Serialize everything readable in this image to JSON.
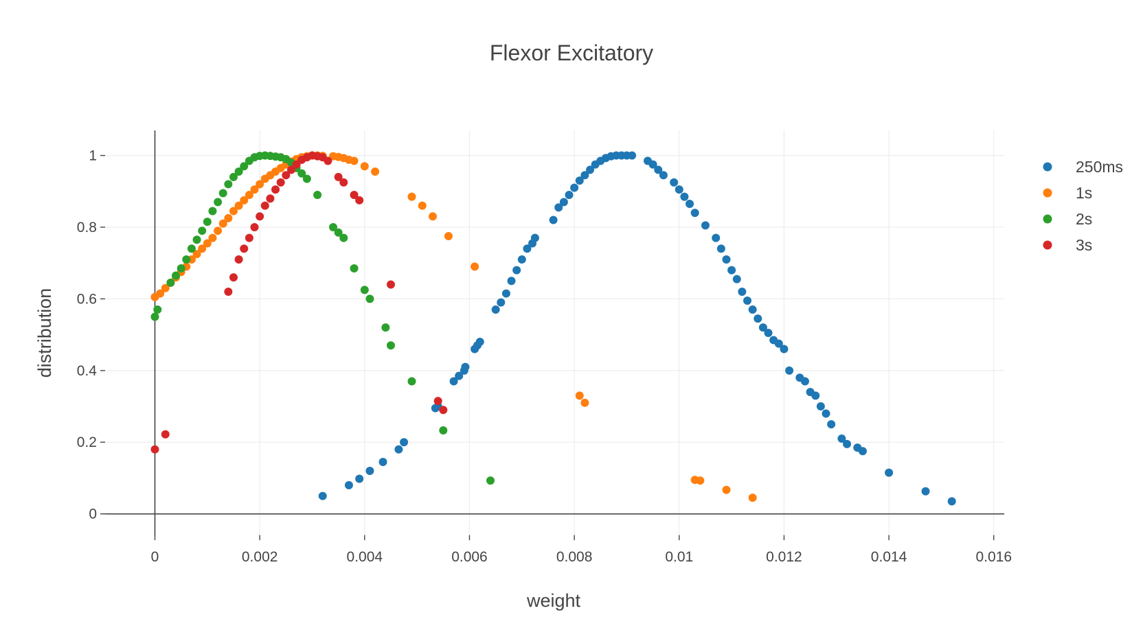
{
  "chart_data": {
    "type": "scatter",
    "title": "Flexor  Excitatory",
    "xlabel": "weight",
    "ylabel": "distribution",
    "xlim": [
      -0.00095,
      0.0162
    ],
    "ylim": [
      -0.06,
      1.07
    ],
    "xticks": [
      {
        "value": 0,
        "label": "0"
      },
      {
        "value": 0.002,
        "label": "0.002"
      },
      {
        "value": 0.004,
        "label": "0.004"
      },
      {
        "value": 0.006,
        "label": "0.006"
      },
      {
        "value": 0.008,
        "label": "0.008"
      },
      {
        "value": 0.01,
        "label": "0.01"
      },
      {
        "value": 0.012,
        "label": "0.012"
      },
      {
        "value": 0.014,
        "label": "0.014"
      },
      {
        "value": 0.016,
        "label": "0.016"
      }
    ],
    "yticks": [
      {
        "value": 0,
        "label": "0"
      },
      {
        "value": 0.2,
        "label": "0.2"
      },
      {
        "value": 0.4,
        "label": "0.4"
      },
      {
        "value": 0.6,
        "label": "0.6"
      },
      {
        "value": 0.8,
        "label": "0.8"
      },
      {
        "value": 1,
        "label": "1"
      }
    ],
    "grid": true,
    "legend_position": "top-right",
    "series": [
      {
        "name": "250ms",
        "color": "#1f77b4",
        "x": [
          0.0032,
          0.0037,
          0.0039,
          0.0041,
          0.00435,
          0.00465,
          0.00475,
          0.00535,
          0.0054,
          0.0057,
          0.0058,
          0.0059,
          0.00592,
          0.0061,
          0.00615,
          0.0062,
          0.0065,
          0.0066,
          0.0067,
          0.0068,
          0.0069,
          0.007,
          0.0071,
          0.0072,
          0.00725,
          0.0076,
          0.0077,
          0.0078,
          0.0079,
          0.008,
          0.0081,
          0.0082,
          0.0083,
          0.0084,
          0.0085,
          0.0086,
          0.0087,
          0.0088,
          0.0089,
          0.009,
          0.0091,
          0.0094,
          0.0095,
          0.0096,
          0.0097,
          0.0099,
          0.01,
          0.0101,
          0.0102,
          0.0103,
          0.0105,
          0.0107,
          0.0108,
          0.0109,
          0.011,
          0.0111,
          0.0112,
          0.0113,
          0.0114,
          0.0115,
          0.0116,
          0.0117,
          0.0118,
          0.0119,
          0.012,
          0.0121,
          0.0123,
          0.0124,
          0.0125,
          0.0126,
          0.0127,
          0.0128,
          0.0129,
          0.0131,
          0.0132,
          0.0134,
          0.0135,
          0.014,
          0.0147,
          0.0152
        ],
        "y": [
          0.05,
          0.08,
          0.098,
          0.12,
          0.145,
          0.18,
          0.2,
          0.295,
          0.3,
          0.37,
          0.385,
          0.4,
          0.41,
          0.46,
          0.47,
          0.48,
          0.57,
          0.59,
          0.615,
          0.65,
          0.68,
          0.71,
          0.74,
          0.755,
          0.77,
          0.82,
          0.855,
          0.87,
          0.89,
          0.91,
          0.93,
          0.945,
          0.96,
          0.975,
          0.985,
          0.993,
          0.998,
          1.0,
          1.0,
          1.0,
          1.0,
          0.985,
          0.975,
          0.96,
          0.945,
          0.925,
          0.905,
          0.885,
          0.865,
          0.84,
          0.805,
          0.77,
          0.74,
          0.71,
          0.68,
          0.655,
          0.62,
          0.595,
          0.57,
          0.545,
          0.52,
          0.505,
          0.485,
          0.475,
          0.46,
          0.4,
          0.38,
          0.37,
          0.34,
          0.33,
          0.3,
          0.28,
          0.25,
          0.21,
          0.195,
          0.185,
          0.175,
          0.115,
          0.063,
          0.035
        ]
      },
      {
        "name": "1s",
        "color": "#ff7f0e",
        "x": [
          0.0,
          0.0001,
          0.0002,
          0.0003,
          0.0004,
          0.0005,
          0.0006,
          0.0007,
          0.0008,
          0.0009,
          0.001,
          0.0011,
          0.0012,
          0.0013,
          0.0014,
          0.0015,
          0.0016,
          0.0017,
          0.0018,
          0.0019,
          0.002,
          0.0021,
          0.0022,
          0.0023,
          0.0024,
          0.0025,
          0.0026,
          0.0027,
          0.0028,
          0.0029,
          0.003,
          0.0031,
          0.0032,
          0.0034,
          0.0035,
          0.0036,
          0.0037,
          0.0038,
          0.004,
          0.0042,
          0.0049,
          0.0051,
          0.0053,
          0.0056,
          0.0061,
          0.0081,
          0.0082,
          0.0103,
          0.0104,
          0.0109,
          0.0114
        ],
        "y": [
          0.605,
          0.615,
          0.63,
          0.645,
          0.66,
          0.675,
          0.69,
          0.71,
          0.725,
          0.74,
          0.755,
          0.77,
          0.79,
          0.81,
          0.825,
          0.845,
          0.86,
          0.875,
          0.89,
          0.905,
          0.92,
          0.935,
          0.945,
          0.955,
          0.965,
          0.975,
          0.983,
          0.99,
          0.995,
          0.998,
          1.0,
          1.0,
          0.999,
          0.998,
          0.996,
          0.993,
          0.988,
          0.985,
          0.97,
          0.955,
          0.885,
          0.86,
          0.83,
          0.775,
          0.69,
          0.33,
          0.31,
          0.095,
          0.093,
          0.067,
          0.045
        ]
      },
      {
        "name": "2s",
        "color": "#2ca02c",
        "x": [
          0.0,
          5e-05,
          0.0003,
          0.0004,
          0.0005,
          0.0006,
          0.0007,
          0.0008,
          0.0009,
          0.001,
          0.0011,
          0.0012,
          0.0013,
          0.0014,
          0.0015,
          0.0016,
          0.0017,
          0.0018,
          0.0019,
          0.002,
          0.0021,
          0.0022,
          0.0023,
          0.0024,
          0.0025,
          0.0026,
          0.0027,
          0.0028,
          0.0029,
          0.0031,
          0.0034,
          0.0035,
          0.0036,
          0.0038,
          0.004,
          0.0041,
          0.0044,
          0.0045,
          0.0049,
          0.0055,
          0.0064
        ],
        "y": [
          0.55,
          0.57,
          0.645,
          0.665,
          0.685,
          0.71,
          0.74,
          0.765,
          0.79,
          0.815,
          0.845,
          0.87,
          0.895,
          0.92,
          0.94,
          0.955,
          0.97,
          0.985,
          0.995,
          0.999,
          1.0,
          0.999,
          0.997,
          0.995,
          0.99,
          0.98,
          0.965,
          0.95,
          0.935,
          0.89,
          0.8,
          0.785,
          0.77,
          0.685,
          0.625,
          0.6,
          0.52,
          0.47,
          0.37,
          0.233,
          0.093
        ]
      },
      {
        "name": "3s",
        "color": "#d62728",
        "x": [
          0.0,
          0.0002,
          0.0014,
          0.0015,
          0.0016,
          0.0017,
          0.0018,
          0.0019,
          0.002,
          0.0021,
          0.0022,
          0.0023,
          0.0024,
          0.0025,
          0.0026,
          0.0027,
          0.0028,
          0.0029,
          0.003,
          0.0031,
          0.0032,
          0.0033,
          0.0035,
          0.0036,
          0.0038,
          0.0039,
          0.0045,
          0.0054,
          0.0055
        ],
        "y": [
          0.18,
          0.222,
          0.62,
          0.66,
          0.71,
          0.74,
          0.77,
          0.8,
          0.83,
          0.86,
          0.88,
          0.905,
          0.925,
          0.945,
          0.96,
          0.975,
          0.988,
          0.995,
          1.0,
          0.998,
          0.995,
          0.985,
          0.94,
          0.925,
          0.89,
          0.875,
          0.64,
          0.315,
          0.29
        ]
      }
    ]
  }
}
